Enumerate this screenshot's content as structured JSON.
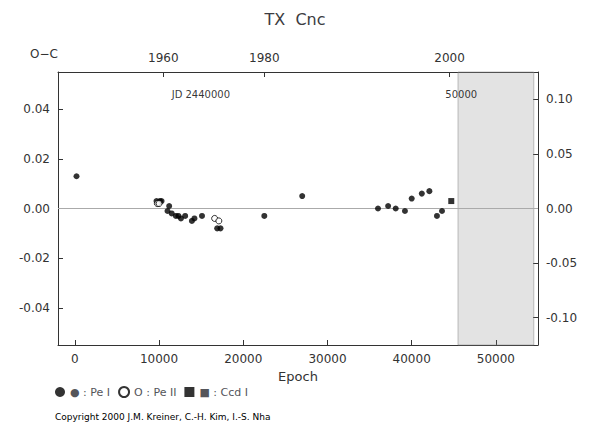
{
  "chart_data": {
    "type": "scatter",
    "title": "TX  Cnc",
    "xlabel": "Epoch",
    "ylabel": "O−C",
    "xlim": [
      -2000,
      55000
    ],
    "xticks": [
      0,
      10000,
      20000,
      30000,
      40000,
      50000
    ],
    "x2lim": [
      -2000,
      55000
    ],
    "x2ticks": [
      {
        "value": 10500,
        "label": "1960"
      },
      {
        "value": 22500,
        "label": "1980"
      },
      {
        "value": 44500,
        "label": "2000"
      }
    ],
    "ylim": [
      -0.055,
      0.055
    ],
    "yticks": [
      {
        "value": -0.04,
        "label": "-0.04"
      },
      {
        "value": -0.02,
        "label": "-0.02"
      },
      {
        "value": 0.0,
        "label": "0.00"
      },
      {
        "value": 0.02,
        "label": "0.02"
      },
      {
        "value": 0.04,
        "label": "0.04"
      }
    ],
    "y2lim": [
      -0.125,
      0.125
    ],
    "y2ticks": [
      {
        "value": -0.1,
        "label": "-0.10"
      },
      {
        "value": -0.05,
        "label": "-0.05"
      },
      {
        "value": 0.0,
        "label": "0.00"
      },
      {
        "value": 0.05,
        "label": "0.05"
      },
      {
        "value": 0.1,
        "label": "0.10"
      }
    ],
    "grid": false,
    "legend": "bottom",
    "series": [
      {
        "name": "● : Pe I",
        "color": "black",
        "marker": "circle",
        "x": [
          200,
          9700,
          9900,
          10100,
          10300,
          11000,
          11200,
          11500,
          12000,
          12300,
          12600,
          13100,
          13900,
          14200,
          15100,
          16900,
          17300,
          22500,
          27000,
          36000,
          37200,
          38100,
          39200,
          40000,
          41200,
          42100,
          43000,
          43600
        ],
        "values": [
          0.013,
          0.003,
          0.002,
          0.003,
          0.003,
          -0.001,
          0.001,
          -0.002,
          -0.003,
          -0.003,
          -0.004,
          -0.003,
          -0.005,
          -0.004,
          -0.003,
          -0.008,
          -0.008,
          -0.003,
          0.005,
          0.0,
          0.001,
          0.0,
          -0.001,
          0.004,
          0.006,
          0.007,
          -0.003,
          -0.001
        ]
      },
      {
        "name": "O : Pe II",
        "color": "black",
        "marker": "circle_open",
        "x": [
          9800,
          10000,
          16600,
          17100
        ],
        "values": [
          0.002,
          0.002,
          -0.004,
          -0.005
        ]
      },
      {
        "name": "■ : Ccd I",
        "color": "black",
        "marker": "square",
        "x": [
          44700
        ],
        "values": [
          0.003
        ]
      }
    ],
    "annotations": [
      {
        "text": "JD 2440000",
        "x": 11500,
        "y": 0.048
      },
      {
        "text": "50000",
        "x": 44000,
        "y": 0.048
      }
    ],
    "shaded_region": [
      45500,
      54500
    ],
    "zero_line": 0,
    "zero_line_color": "#aaaaaa",
    "copyright": "Copyright 2000 J.M. Kreiner, C.-H. Kim, I.-S. Nha"
  }
}
